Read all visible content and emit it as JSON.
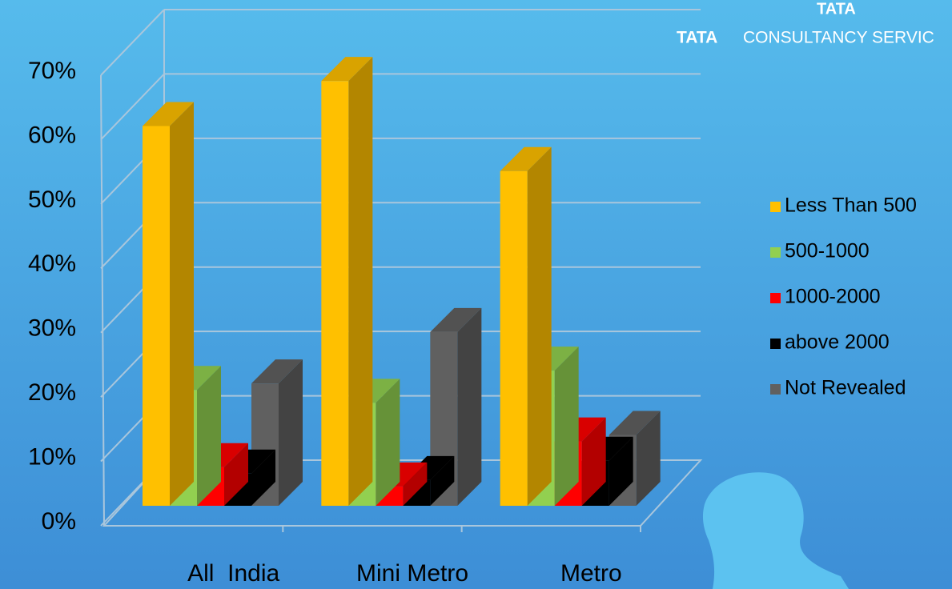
{
  "chart_data": {
    "type": "bar3d",
    "categories": [
      "All  India",
      "Mini Metro",
      "Metro"
    ],
    "series": [
      {
        "name": "Less Than 500",
        "color": "#ffc000",
        "values": [
          59,
          66,
          52
        ]
      },
      {
        "name": "500-1000",
        "color": "#92d050",
        "values": [
          18,
          16,
          21
        ]
      },
      {
        "name": "1000-2000",
        "color": "#ff0000",
        "values": [
          6,
          3,
          10
        ]
      },
      {
        "name": "above 2000",
        "color": "#000000",
        "values": [
          5,
          4,
          7
        ]
      },
      {
        "name": "Not Revealed",
        "color": "#606060",
        "values": [
          19,
          27,
          11
        ]
      }
    ],
    "ylim": [
      0,
      70
    ],
    "yticks": [
      {
        "value": 0,
        "label": "0%"
      },
      {
        "value": 10,
        "label": "10%"
      },
      {
        "value": 20,
        "label": "20%"
      },
      {
        "value": 30,
        "label": "30%"
      },
      {
        "value": 40,
        "label": "40%"
      },
      {
        "value": 50,
        "label": "50%"
      },
      {
        "value": 60,
        "label": "60%"
      },
      {
        "value": 70,
        "label": "70%"
      }
    ],
    "grid": true,
    "legend": "right"
  },
  "logo": {
    "top": "TATA",
    "wordmark": "TATA",
    "name": "CONSULTANCY SERVIC"
  }
}
